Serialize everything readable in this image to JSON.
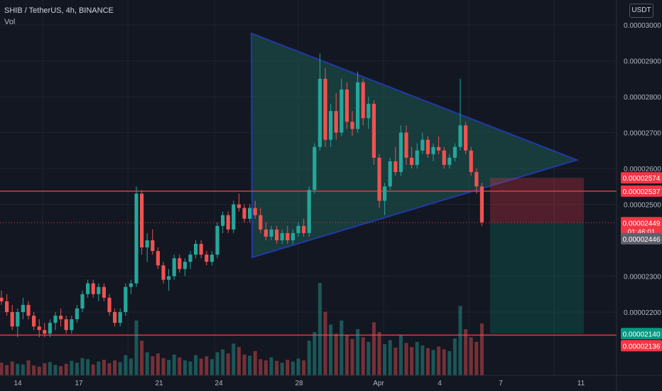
{
  "header": {
    "title": "SHIB / TetherUS, 4h, BINANCE",
    "volume_label": "Vol",
    "currency_button": "USDT"
  },
  "colors": {
    "background": "#131722",
    "grid": "#1f2330",
    "up": "#26a69a",
    "down": "#ef5350",
    "pattern_line": "#1e3a9e",
    "pattern_fill": "#1d5a52",
    "level_line": "#e03a3e",
    "axis_text": "#b2b5be",
    "price_tag_current": "#5d606b",
    "price_tag_green": "#089981",
    "price_tag_red": "#f23645"
  },
  "chart_data": {
    "type": "candlestick",
    "symbol": "SHIB / TetherUS",
    "interval": "4h",
    "exchange": "BINANCE",
    "ylim": [
      2.07e-05,
      3.08e-05
    ],
    "y_ticks": [
      "0.00002200",
      "0.00002300",
      "0.00002500",
      "0.00002600",
      "0.00002700",
      "0.00002800",
      "0.00002900",
      "0.00003000"
    ],
    "x_ticks": [
      "14",
      "17",
      "21",
      "24",
      "28",
      "Apr",
      "4",
      "7",
      "11"
    ],
    "grid": true,
    "horizontal_levels": [
      2.537e-05,
      2.136e-05
    ],
    "price_tags": {
      "stop_upper": "0.00002574",
      "resistance": "0.00002537",
      "last_price": "0.00002449",
      "countdown": "01:46:01",
      "current": "0.00002446",
      "target_green": "0.00002140",
      "support": "0.00002136"
    },
    "triangle_pattern": [
      {
        "date": "Mar 25",
        "price": 2.978e-05
      },
      {
        "date": "Apr 10",
        "price": 2.625e-05
      },
      {
        "date": "Mar 25",
        "price": 2.355e-05
      }
    ],
    "short_position": {
      "entry": 2.449e-05,
      "stop": 2.574e-05,
      "target": 2.14e-05
    },
    "candles": [
      [
        2.24e-05,
        2.26e-05,
        2.22e-05,
        2.23e-05
      ],
      [
        2.23e-05,
        2.25e-05,
        2.19e-05,
        2.2e-05
      ],
      [
        2.2e-05,
        2.22e-05,
        2.15e-05,
        2.16e-05
      ],
      [
        2.16e-05,
        2.21e-05,
        2.13e-05,
        2.2e-05
      ],
      [
        2.2e-05,
        2.24e-05,
        2.18e-05,
        2.22e-05
      ],
      [
        2.22e-05,
        2.23e-05,
        2.18e-05,
        2.19e-05
      ],
      [
        2.19e-05,
        2.2e-05,
        2.15e-05,
        2.16e-05
      ],
      [
        2.16e-05,
        2.18e-05,
        2.13e-05,
        2.15e-05
      ],
      [
        2.15e-05,
        2.17e-05,
        2.13e-05,
        2.14e-05
      ],
      [
        2.14e-05,
        2.18e-05,
        2.13e-05,
        2.17e-05
      ],
      [
        2.17e-05,
        2.2e-05,
        2.15e-05,
        2.19e-05
      ],
      [
        2.19e-05,
        2.21e-05,
        2.16e-05,
        2.18e-05
      ],
      [
        2.18e-05,
        2.19e-05,
        2.14e-05,
        2.15e-05
      ],
      [
        2.15e-05,
        2.19e-05,
        2.14e-05,
        2.18e-05
      ],
      [
        2.18e-05,
        2.22e-05,
        2.17e-05,
        2.21e-05
      ],
      [
        2.21e-05,
        2.26e-05,
        2.2e-05,
        2.25e-05
      ],
      [
        2.25e-05,
        2.29e-05,
        2.24e-05,
        2.28e-05
      ],
      [
        2.28e-05,
        2.29e-05,
        2.24e-05,
        2.25e-05
      ],
      [
        2.25e-05,
        2.28e-05,
        2.23e-05,
        2.27e-05
      ],
      [
        2.27e-05,
        2.28e-05,
        2.23e-05,
        2.24e-05
      ],
      [
        2.24e-05,
        2.25e-05,
        2.19e-05,
        2.2e-05
      ],
      [
        2.2e-05,
        2.21e-05,
        2.16e-05,
        2.17e-05
      ],
      [
        2.17e-05,
        2.21e-05,
        2.16e-05,
        2.2e-05
      ],
      [
        2.2e-05,
        2.28e-05,
        2.19e-05,
        2.27e-05
      ],
      [
        2.27e-05,
        2.29e-05,
        2.25e-05,
        2.28e-05
      ],
      [
        2.28e-05,
        2.55e-05,
        2.27e-05,
        2.53e-05
      ],
      [
        2.53e-05,
        2.54e-05,
        2.36e-05,
        2.38e-05
      ],
      [
        2.38e-05,
        2.42e-05,
        2.34e-05,
        2.4e-05
      ],
      [
        2.4e-05,
        2.43e-05,
        2.36e-05,
        2.37e-05
      ],
      [
        2.37e-05,
        2.38e-05,
        2.32e-05,
        2.33e-05
      ],
      [
        2.33e-05,
        2.34e-05,
        2.28e-05,
        2.29e-05
      ],
      [
        2.29e-05,
        2.32e-05,
        2.26e-05,
        2.3e-05
      ],
      [
        2.3e-05,
        2.36e-05,
        2.29e-05,
        2.35e-05
      ],
      [
        2.35e-05,
        2.36e-05,
        2.31e-05,
        2.32e-05
      ],
      [
        2.32e-05,
        2.35e-05,
        2.3e-05,
        2.34e-05
      ],
      [
        2.34e-05,
        2.37e-05,
        2.32e-05,
        2.36e-05
      ],
      [
        2.36e-05,
        2.4e-05,
        2.35e-05,
        2.39e-05
      ],
      [
        2.39e-05,
        2.4e-05,
        2.35e-05,
        2.36e-05
      ],
      [
        2.36e-05,
        2.37e-05,
        2.33e-05,
        2.34e-05
      ],
      [
        2.34e-05,
        2.37e-05,
        2.33e-05,
        2.36e-05
      ],
      [
        2.36e-05,
        2.45e-05,
        2.35e-05,
        2.44e-05
      ],
      [
        2.44e-05,
        2.48e-05,
        2.42e-05,
        2.47e-05
      ],
      [
        2.47e-05,
        2.48e-05,
        2.42e-05,
        2.43e-05
      ],
      [
        2.43e-05,
        2.51e-05,
        2.42e-05,
        2.5e-05
      ],
      [
        2.5e-05,
        2.53e-05,
        2.48e-05,
        2.49e-05
      ],
      [
        2.49e-05,
        2.5e-05,
        2.45e-05,
        2.46e-05
      ],
      [
        2.46e-05,
        2.5e-05,
        2.45e-05,
        2.49e-05
      ],
      [
        2.49e-05,
        2.51e-05,
        2.46e-05,
        2.47e-05
      ],
      [
        2.47e-05,
        2.49e-05,
        2.42e-05,
        2.43e-05
      ],
      [
        2.43e-05,
        2.45e-05,
        2.4e-05,
        2.41e-05
      ],
      [
        2.41e-05,
        2.44e-05,
        2.4e-05,
        2.43e-05
      ],
      [
        2.43e-05,
        2.44e-05,
        2.39e-05,
        2.4e-05
      ],
      [
        2.4e-05,
        2.43e-05,
        2.39e-05,
        2.42e-05
      ],
      [
        2.42e-05,
        2.44e-05,
        2.39e-05,
        2.4e-05
      ],
      [
        2.4e-05,
        2.43e-05,
        2.39e-05,
        2.42e-05
      ],
      [
        2.42e-05,
        2.45e-05,
        2.41e-05,
        2.44e-05
      ],
      [
        2.44e-05,
        2.46e-05,
        2.41e-05,
        2.42e-05
      ],
      [
        2.42e-05,
        2.55e-05,
        2.41e-05,
        2.54e-05
      ],
      [
        2.54e-05,
        2.67e-05,
        2.53e-05,
        2.66e-05
      ],
      [
        2.66e-05,
        2.92e-05,
        2.65e-05,
        2.85e-05
      ],
      [
        2.85e-05,
        2.88e-05,
        2.66e-05,
        2.68e-05
      ],
      [
        2.68e-05,
        2.78e-05,
        2.66e-05,
        2.76e-05
      ],
      [
        2.76e-05,
        2.81e-05,
        2.68e-05,
        2.7e-05
      ],
      [
        2.7e-05,
        2.85e-05,
        2.69e-05,
        2.82e-05
      ],
      [
        2.82e-05,
        2.84e-05,
        2.71e-05,
        2.73e-05
      ],
      [
        2.73e-05,
        2.76e-05,
        2.69e-05,
        2.71e-05
      ],
      [
        2.71e-05,
        2.87e-05,
        2.7e-05,
        2.84e-05
      ],
      [
        2.84e-05,
        2.85e-05,
        2.72e-05,
        2.74e-05
      ],
      [
        2.74e-05,
        2.8e-05,
        2.71e-05,
        2.78e-05
      ],
      [
        2.78e-05,
        2.79e-05,
        2.61e-05,
        2.63e-05
      ],
      [
        2.63e-05,
        2.64e-05,
        2.49e-05,
        2.51e-05
      ],
      [
        2.51e-05,
        2.56e-05,
        2.47e-05,
        2.55e-05
      ],
      [
        2.55e-05,
        2.63e-05,
        2.54e-05,
        2.62e-05
      ],
      [
        2.62e-05,
        2.66e-05,
        2.58e-05,
        2.59e-05
      ],
      [
        2.59e-05,
        2.72e-05,
        2.58e-05,
        2.7e-05
      ],
      [
        2.7e-05,
        2.72e-05,
        2.61e-05,
        2.63e-05
      ],
      [
        2.63e-05,
        2.66e-05,
        2.6e-05,
        2.61e-05
      ],
      [
        2.61e-05,
        2.67e-05,
        2.6e-05,
        2.65e-05
      ],
      [
        2.65e-05,
        2.7e-05,
        2.64e-05,
        2.68e-05
      ],
      [
        2.68e-05,
        2.69e-05,
        2.63e-05,
        2.64e-05
      ],
      [
        2.64e-05,
        2.67e-05,
        2.62e-05,
        2.66e-05
      ],
      [
        2.66e-05,
        2.69e-05,
        2.64e-05,
        2.65e-05
      ],
      [
        2.65e-05,
        2.66e-05,
        2.6e-05,
        2.61e-05
      ],
      [
        2.61e-05,
        2.64e-05,
        2.6e-05,
        2.63e-05
      ],
      [
        2.63e-05,
        2.67e-05,
        2.62e-05,
        2.66e-05
      ],
      [
        2.66e-05,
        2.85e-05,
        2.65e-05,
        2.72e-05
      ],
      [
        2.72e-05,
        2.73e-05,
        2.64e-05,
        2.65e-05
      ],
      [
        2.65e-05,
        2.66e-05,
        2.58e-05,
        2.59e-05
      ],
      [
        2.59e-05,
        2.6e-05,
        2.53e-05,
        2.55e-05
      ],
      [
        2.55e-05,
        2.56e-05,
        2.44e-05,
        2.45e-05
      ]
    ],
    "volumes": [
      22,
      18,
      24,
      20,
      19,
      26,
      17,
      15,
      21,
      23,
      18,
      16,
      20,
      25,
      22,
      30,
      28,
      19,
      24,
      27,
      21,
      26,
      23,
      35,
      29,
      95,
      60,
      40,
      33,
      38,
      30,
      27,
      36,
      31,
      26,
      24,
      35,
      29,
      33,
      28,
      40,
      45,
      38,
      55,
      49,
      36,
      34,
      42,
      28,
      26,
      31,
      25,
      22,
      27,
      24,
      29,
      26,
      60,
      75,
      160,
      110,
      88,
      72,
      95,
      70,
      63,
      80,
      66,
      58,
      92,
      75,
      54,
      61,
      48,
      70,
      56,
      49,
      58,
      52,
      47,
      44,
      50,
      45,
      42,
      64,
      120,
      80,
      66,
      58,
      90
    ]
  }
}
